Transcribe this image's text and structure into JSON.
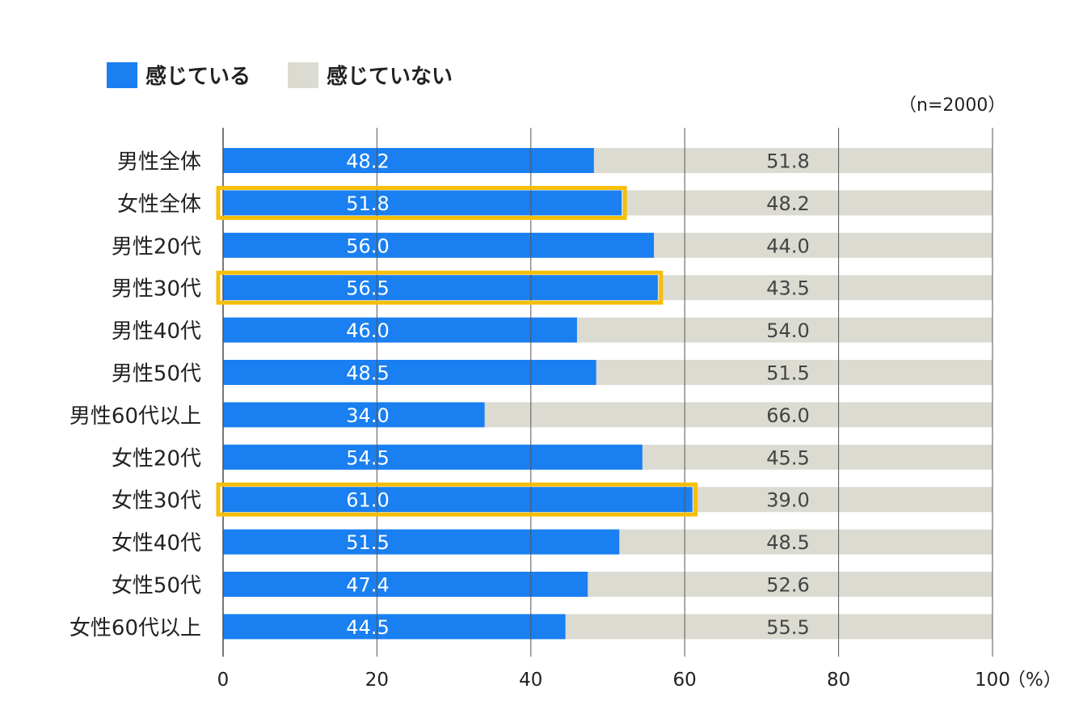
{
  "legend": {
    "yes_label": "感じている",
    "no_label": "感じていない"
  },
  "note": "（n=2000）",
  "colors": {
    "yes": "#1a7ff0",
    "no": "#dcdbd2",
    "highlight": "#f5be0b",
    "grid": "#555555"
  },
  "chart_data": {
    "type": "bar",
    "orientation": "horizontal",
    "stacked": true,
    "categories": [
      "男性全体",
      "女性全体",
      "男性20代",
      "男性30代",
      "男性40代",
      "男性50代",
      "男性60代以上",
      "女性20代",
      "女性30代",
      "女性40代",
      "女性50代",
      "女性60代以上"
    ],
    "series": [
      {
        "name": "感じている",
        "values": [
          48.2,
          51.8,
          56.0,
          56.5,
          46.0,
          48.5,
          34.0,
          54.5,
          61.0,
          51.5,
          47.4,
          44.5
        ]
      },
      {
        "name": "感じていない",
        "values": [
          51.8,
          48.2,
          44.0,
          43.5,
          54.0,
          51.5,
          66.0,
          45.5,
          39.0,
          48.5,
          52.6,
          55.5
        ]
      }
    ],
    "highlighted_categories": [
      "女性全体",
      "男性30代",
      "女性30代"
    ],
    "xlim": [
      0,
      100
    ],
    "xticks": [
      0,
      20,
      40,
      60,
      80,
      100
    ],
    "xtick_labels": [
      "0",
      "20",
      "40",
      "60",
      "80",
      "100"
    ],
    "x_unit_label": "（%）",
    "legend_position": "top-left"
  }
}
